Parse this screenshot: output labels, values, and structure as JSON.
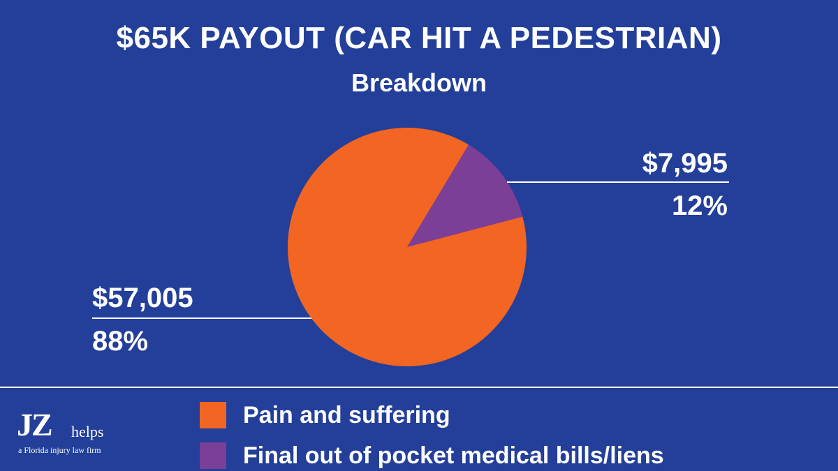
{
  "chart_data": {
    "type": "pie",
    "title": "$65K PAYOUT (CAR HIT A PEDESTRIAN)",
    "subtitle": "Breakdown",
    "slices": [
      {
        "name": "Pain and suffering",
        "value": 57005,
        "value_label": "$57,005",
        "percent_label": "88%",
        "color": "#f26522"
      },
      {
        "name": "Final out of pocket medical bills/liens",
        "value": 7995,
        "value_label": "$7,995",
        "percent_label": "12%",
        "color": "#7b3f98"
      }
    ],
    "legend_position": "bottom"
  },
  "colors": {
    "background": "#233f99",
    "text": "#ffffff"
  },
  "logo": {
    "mark": "JZ",
    "word": "helps",
    "tagline": "a Florida injury law firm"
  }
}
